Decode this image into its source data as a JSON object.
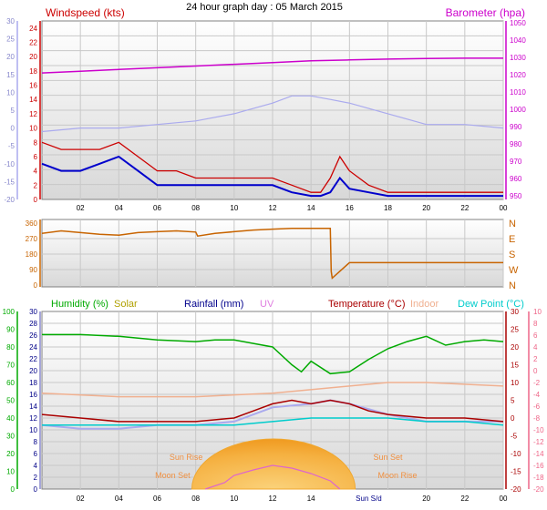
{
  "page": {
    "title": "24 hour graph day : 05 March 2015"
  },
  "colors": {
    "wind": "#cc0000",
    "wind_avg": "#0000cc",
    "baro": "#cc00cc",
    "temp_axis": "#aaaaee",
    "dir": "#c86400",
    "humidity": "#00aa00",
    "solar": "#b0a000",
    "rain": "#00008b",
    "uv": "#e080e0",
    "temperature": "#aa0000",
    "indoor": "#f0b090",
    "dewpoint": "#00cccc",
    "sun": "#f0a830",
    "moon": "#dd66cc",
    "frame": "#808080"
  },
  "chart_data": [
    {
      "type": "line",
      "title": "",
      "legend_left": "Windspeed (kts)",
      "legend_right": "Barometer (hpa)",
      "x_ticks": [
        "02",
        "04",
        "06",
        "08",
        "10",
        "12",
        "14",
        "16",
        "18",
        "20",
        "22",
        "00"
      ],
      "x_range_hours": [
        0,
        24
      ],
      "y_left_wind": {
        "range": [
          0,
          25
        ],
        "ticks": [
          "0",
          "2",
          "4",
          "6",
          "8",
          "10",
          "12",
          "14",
          "16",
          "18",
          "20",
          "22",
          "24"
        ]
      },
      "y_left_temp": {
        "range": [
          -20,
          30
        ],
        "ticks": [
          "-20",
          "-15",
          "-10",
          "-5",
          "0",
          "5",
          "10",
          "15",
          "20",
          "25",
          "30"
        ]
      },
      "y_right_baro": {
        "range": [
          948,
          1051
        ],
        "ticks": [
          "950",
          "960",
          "970",
          "980",
          "990",
          "1000",
          "1010",
          "1020",
          "1030",
          "1040",
          "1050"
        ]
      },
      "series": [
        {
          "name": "Windspeed (kts)",
          "x": [
            0,
            1,
            2,
            3,
            4,
            5,
            6,
            7,
            8,
            9,
            10,
            11,
            12,
            13,
            14,
            14.5,
            15,
            15.5,
            16,
            17,
            18,
            19,
            20,
            21,
            22,
            23,
            24
          ],
          "values": [
            8,
            7,
            7,
            7,
            8,
            6,
            4,
            4,
            3,
            3,
            3,
            3,
            3,
            2,
            1,
            1,
            3,
            6,
            4,
            2,
            1,
            1,
            1,
            1,
            1,
            1,
            1
          ]
        },
        {
          "x": [
            0,
            1,
            2,
            3,
            4,
            5,
            6,
            7,
            8,
            9,
            10,
            11,
            12,
            13,
            14,
            14.5,
            15,
            15.5,
            16,
            17,
            18,
            19,
            20,
            21,
            22,
            23,
            24
          ],
          "values": [
            5,
            4,
            4,
            5,
            6,
            4,
            2,
            2,
            2,
            2,
            2,
            2,
            2,
            1,
            0.5,
            0.5,
            1,
            3,
            1.5,
            1,
            0.5,
            0.5,
            0.5,
            0.5,
            0.5,
            0.5,
            0.5
          ]
        },
        {
          "name": "Barometer (hpa)",
          "x": [
            0,
            2,
            4,
            6,
            8,
            10,
            12,
            14,
            16,
            18,
            20,
            22,
            24
          ],
          "values": [
            1021,
            1022,
            1023,
            1024,
            1025,
            1026,
            1027,
            1028,
            1028.5,
            1029,
            1029.3,
            1029.5,
            1029.5
          ]
        },
        {
          "x": [
            0,
            2,
            4,
            6,
            8,
            9,
            10,
            12,
            13,
            14,
            15,
            16,
            18,
            20,
            22,
            24
          ],
          "values": [
            -1,
            0,
            0,
            1,
            2,
            3,
            4,
            7,
            9,
            9,
            8,
            7,
            4,
            1,
            1,
            0
          ]
        }
      ]
    },
    {
      "type": "line",
      "title": "",
      "x_range_hours": [
        0,
        24
      ],
      "y_left": {
        "range": [
          0,
          360
        ],
        "ticks": [
          "0",
          "90",
          "180",
          "270",
          "360"
        ]
      },
      "y_right_labels": [
        "N",
        "W",
        "S",
        "E",
        "N"
      ],
      "series": [
        {
          "x": [
            0,
            1,
            2,
            3,
            4,
            5,
            6,
            7,
            8,
            8.1,
            9,
            10,
            11,
            12,
            13,
            14,
            15,
            15.05,
            15.1,
            16,
            18,
            20,
            22,
            24
          ],
          "values": [
            300,
            315,
            305,
            295,
            290,
            305,
            310,
            315,
            308,
            285,
            300,
            310,
            320,
            325,
            330,
            330,
            330,
            80,
            40,
            130,
            130,
            130,
            130,
            130
          ]
        }
      ]
    },
    {
      "type": "line",
      "title": "",
      "legend": [
        "Humidity (%)",
        "Solar",
        "Rainfall (mm)",
        "UV",
        "Temperature (°C)",
        "Indoor",
        "Dew Point (°C)"
      ],
      "x_ticks": [
        "02",
        "04",
        "06",
        "08",
        "10",
        "12",
        "14",
        "Sun S/d",
        "20",
        "22",
        "00"
      ],
      "x_range_hours": [
        0,
        24
      ],
      "y_humidity": {
        "range": [
          0,
          100
        ],
        "ticks": [
          "0",
          "10",
          "20",
          "30",
          "40",
          "50",
          "60",
          "70",
          "80",
          "90",
          "100"
        ]
      },
      "y_rain": {
        "range": [
          0,
          30
        ],
        "ticks": [
          "0",
          "2",
          "4",
          "6",
          "8",
          "10",
          "12",
          "14",
          "16",
          "18",
          "20",
          "22",
          "24",
          "26",
          "28",
          "30"
        ]
      },
      "y_temp_right": {
        "range": [
          -20,
          30
        ],
        "ticks": [
          "-20",
          "-15",
          "-10",
          "-5",
          "0",
          "5",
          "10",
          "15",
          "20",
          "25",
          "30"
        ]
      },
      "y_rain_right": {
        "range": [
          -20,
          10
        ],
        "ticks": [
          "-20",
          "-18",
          "-16",
          "-14",
          "-12",
          "-10",
          "-8",
          "-6",
          "-4",
          "-2",
          "0",
          "2",
          "4",
          "6",
          "8",
          "10"
        ]
      },
      "annotations": [
        "Sun Rise",
        "Sun Set",
        "Moon Set",
        "Moon Rise"
      ],
      "series": [
        {
          "name": "Humidity (%)",
          "x": [
            0,
            2,
            4,
            6,
            8,
            9,
            10,
            11,
            12,
            13,
            13.5,
            14,
            15,
            16,
            17,
            18,
            19,
            20,
            21,
            22,
            23,
            24
          ],
          "values": [
            87,
            87,
            86,
            84,
            83,
            84,
            84,
            82,
            80,
            70,
            66,
            72,
            65,
            66,
            73,
            79,
            83,
            86,
            81,
            83,
            84,
            83
          ]
        },
        {
          "name": "Temperature (°C)",
          "x": [
            0,
            2,
            4,
            6,
            8,
            10,
            11,
            12,
            13,
            14,
            15,
            16,
            17,
            18,
            20,
            22,
            24
          ],
          "values": [
            1,
            0,
            -1,
            -1,
            -1,
            0,
            2,
            4,
            5,
            4,
            5,
            4,
            2,
            1,
            0,
            0,
            -1
          ]
        },
        {
          "name": "Indoor",
          "x": [
            0,
            4,
            8,
            12,
            16,
            18,
            20,
            24
          ],
          "values": [
            7,
            6,
            6,
            7,
            9,
            10,
            10,
            9
          ]
        },
        {
          "name": "Dew Point (°C)",
          "x": [
            0,
            4,
            8,
            10,
            12,
            14,
            16,
            18,
            20,
            22,
            24
          ],
          "values": [
            -2,
            -2,
            -2,
            -2,
            -1,
            0,
            0,
            0,
            -1,
            -1,
            -2
          ]
        },
        {
          "x": [
            0,
            2,
            4,
            6,
            8,
            10,
            12,
            14,
            15,
            16,
            18,
            20,
            24
          ],
          "values": [
            -2,
            -3,
            -3,
            -2,
            -2,
            -1,
            3,
            4,
            5,
            4,
            1,
            -1,
            -1
          ]
        }
      ]
    }
  ]
}
